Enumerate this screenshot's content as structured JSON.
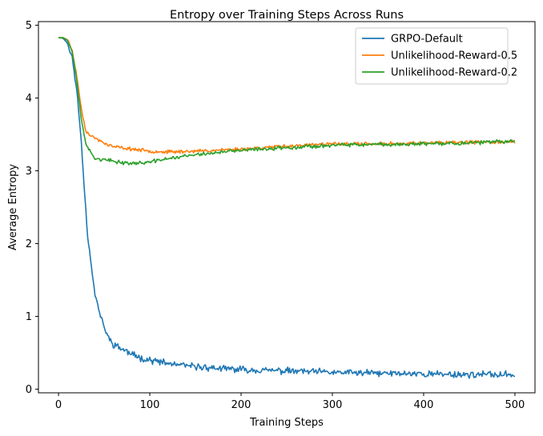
{
  "chart_data": {
    "type": "line",
    "title": "Entropy over Training Steps Across Runs",
    "xlabel": "Training Steps",
    "ylabel": "Average Entropy",
    "xlim": [
      -22,
      522
    ],
    "ylim": [
      -0.05,
      5.05
    ],
    "xticks": [
      0,
      100,
      200,
      300,
      400,
      500
    ],
    "yticks": [
      0,
      1,
      2,
      3,
      4,
      5
    ],
    "grid": false,
    "legend_position": "top-right",
    "series": [
      {
        "name": "GRPO-Default",
        "color": "#1f77b4",
        "points": [
          [
            0,
            4.83
          ],
          [
            5,
            4.82
          ],
          [
            10,
            4.75
          ],
          [
            15,
            4.55
          ],
          [
            20,
            4.1
          ],
          [
            25,
            3.4
          ],
          [
            28,
            2.8
          ],
          [
            32,
            2.1
          ],
          [
            36,
            1.7
          ],
          [
            40,
            1.3
          ],
          [
            45,
            1.05
          ],
          [
            50,
            0.85
          ],
          [
            55,
            0.7
          ],
          [
            60,
            0.62
          ],
          [
            70,
            0.55
          ],
          [
            80,
            0.48
          ],
          [
            90,
            0.43
          ],
          [
            100,
            0.4
          ],
          [
            120,
            0.35
          ],
          [
            140,
            0.32
          ],
          [
            160,
            0.3
          ],
          [
            180,
            0.28
          ],
          [
            200,
            0.27
          ],
          [
            250,
            0.25
          ],
          [
            300,
            0.23
          ],
          [
            350,
            0.22
          ],
          [
            400,
            0.21
          ],
          [
            450,
            0.2
          ],
          [
            500,
            0.2
          ]
        ],
        "noise": 0.035,
        "seed": 11
      },
      {
        "name": "Unlikelihood-Reward-0.5",
        "color": "#ff7f0e",
        "points": [
          [
            0,
            4.83
          ],
          [
            5,
            4.83
          ],
          [
            10,
            4.8
          ],
          [
            15,
            4.65
          ],
          [
            20,
            4.3
          ],
          [
            25,
            3.85
          ],
          [
            30,
            3.55
          ],
          [
            35,
            3.48
          ],
          [
            40,
            3.45
          ],
          [
            50,
            3.38
          ],
          [
            60,
            3.33
          ],
          [
            80,
            3.3
          ],
          [
            100,
            3.27
          ],
          [
            120,
            3.26
          ],
          [
            150,
            3.27
          ],
          [
            200,
            3.3
          ],
          [
            250,
            3.34
          ],
          [
            300,
            3.37
          ],
          [
            350,
            3.37
          ],
          [
            400,
            3.38
          ],
          [
            450,
            3.39
          ],
          [
            500,
            3.4
          ]
        ],
        "noise": 0.018,
        "seed": 23
      },
      {
        "name": "Unlikelihood-Reward-0.2",
        "color": "#2ca02c",
        "points": [
          [
            0,
            4.83
          ],
          [
            5,
            4.83
          ],
          [
            10,
            4.79
          ],
          [
            15,
            4.63
          ],
          [
            20,
            4.25
          ],
          [
            25,
            3.7
          ],
          [
            30,
            3.38
          ],
          [
            35,
            3.25
          ],
          [
            40,
            3.17
          ],
          [
            50,
            3.15
          ],
          [
            60,
            3.13
          ],
          [
            80,
            3.1
          ],
          [
            100,
            3.12
          ],
          [
            120,
            3.17
          ],
          [
            150,
            3.22
          ],
          [
            200,
            3.28
          ],
          [
            250,
            3.32
          ],
          [
            300,
            3.35
          ],
          [
            350,
            3.36
          ],
          [
            400,
            3.37
          ],
          [
            450,
            3.38
          ],
          [
            500,
            3.41
          ]
        ],
        "noise": 0.02,
        "seed": 37
      }
    ]
  }
}
